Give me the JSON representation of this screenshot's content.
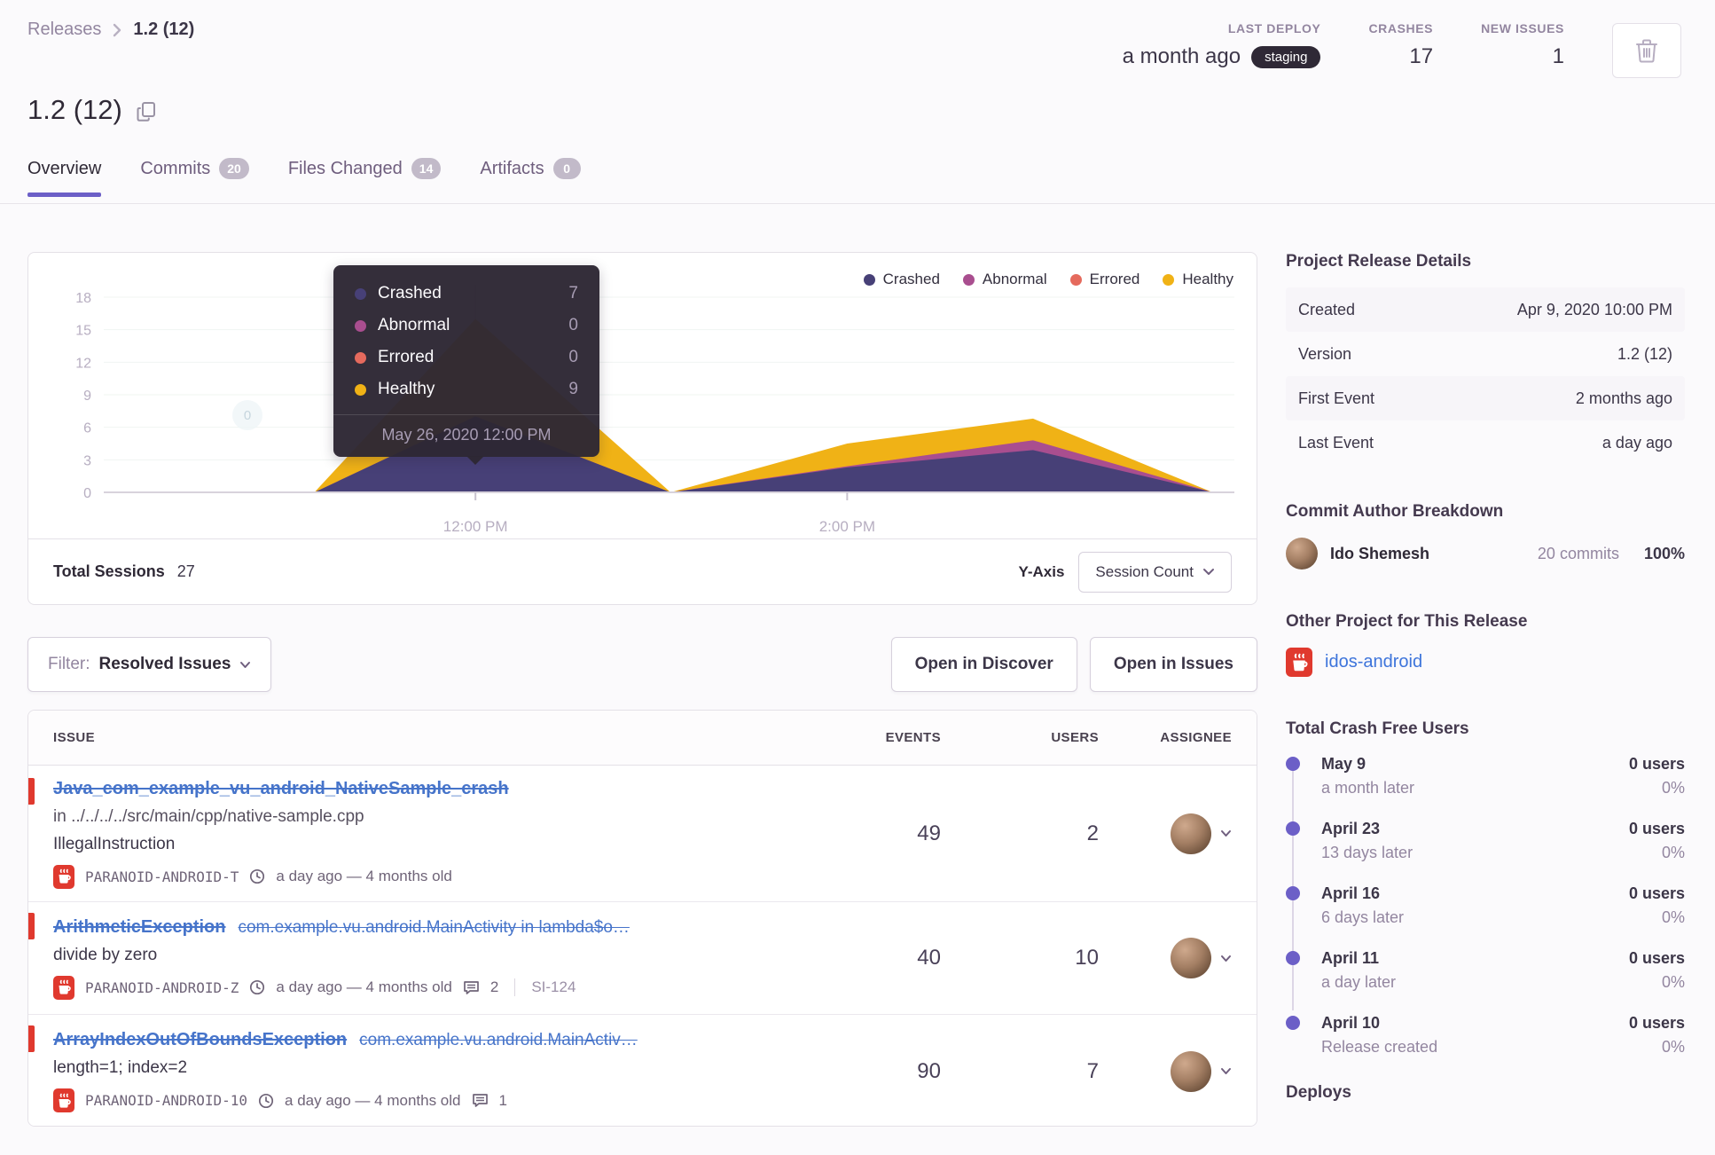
{
  "breadcrumb": {
    "parent": "Releases",
    "current": "1.2 (12)"
  },
  "header_stats": {
    "last_deploy_label": "LAST DEPLOY",
    "last_deploy_value": "a month ago",
    "last_deploy_env": "staging",
    "crashes_label": "CRASHES",
    "crashes_value": "17",
    "new_issues_label": "NEW ISSUES",
    "new_issues_value": "1"
  },
  "page_title": "1.2 (12)",
  "tabs": [
    {
      "label": "Overview"
    },
    {
      "label": "Commits",
      "badge": "20"
    },
    {
      "label": "Files Changed",
      "badge": "14"
    },
    {
      "label": "Artifacts",
      "badge": "0"
    }
  ],
  "chart_card": {
    "legend": [
      {
        "label": "Crashed"
      },
      {
        "label": "Abnormal"
      },
      {
        "label": "Errored"
      },
      {
        "label": "Healthy"
      }
    ],
    "tooltip": {
      "rows": [
        {
          "label": "Crashed",
          "value": "7"
        },
        {
          "label": "Abnormal",
          "value": "0"
        },
        {
          "label": "Errored",
          "value": "0"
        },
        {
          "label": "Healthy",
          "value": "9"
        }
      ],
      "footer": "May 26, 2020 12:00 PM"
    },
    "inline_zero_label": "0",
    "total_sessions_label": "Total Sessions",
    "total_sessions_value": "27",
    "y_axis_label": "Y-Axis",
    "y_axis_selected": "Session Count"
  },
  "chart_data": {
    "type": "area",
    "stacked": true,
    "title": "Release sessions over time",
    "ylim": [
      0,
      18
    ],
    "y_ticks": [
      0,
      3,
      6,
      9,
      12,
      15,
      18
    ],
    "x_range_minutes": [
      0,
      365
    ],
    "x_ticks": [
      {
        "label": "12:00 PM",
        "minutes": 120
      },
      {
        "label": "2:00 PM",
        "minutes": 240
      }
    ],
    "series": [
      {
        "name": "Crashed",
        "color": "#474077",
        "points": [
          [
            0,
            0
          ],
          [
            68,
            0
          ],
          [
            120,
            7
          ],
          [
            183,
            0
          ],
          [
            240,
            2.3
          ],
          [
            300,
            3.9
          ],
          [
            358,
            0
          ]
        ]
      },
      {
        "name": "Abnormal",
        "color": "#A94E8F",
        "points": [
          [
            0,
            0
          ],
          [
            68,
            0
          ],
          [
            120,
            0
          ],
          [
            183,
            0
          ],
          [
            240,
            0.1
          ],
          [
            300,
            0.9
          ],
          [
            358,
            0
          ]
        ]
      },
      {
        "name": "Errored",
        "color": "#E56A5D",
        "points": [
          [
            0,
            0
          ],
          [
            68,
            0
          ],
          [
            120,
            0
          ],
          [
            183,
            0
          ],
          [
            240,
            0
          ],
          [
            300,
            0
          ],
          [
            358,
            0
          ]
        ]
      },
      {
        "name": "Healthy",
        "color": "#F0B216",
        "points": [
          [
            0,
            0
          ],
          [
            68,
            0
          ],
          [
            120,
            9
          ],
          [
            183,
            0
          ],
          [
            240,
            2.1
          ],
          [
            300,
            2.0
          ],
          [
            358,
            0
          ]
        ]
      }
    ],
    "hover": {
      "x_minutes": 120,
      "x_label": "May 26, 2020 12:00 PM",
      "values": {
        "Crashed": 7,
        "Abnormal": 0,
        "Errored": 0,
        "Healthy": 9
      }
    },
    "total_sessions": 27,
    "y_axis_mode": "Session Count",
    "legend_position": "top-right",
    "grid": true
  },
  "filter_bar": {
    "filter_label": "Filter:",
    "filter_value": "Resolved Issues",
    "open_discover": "Open in Discover",
    "open_issues": "Open in Issues"
  },
  "issues_table": {
    "columns": {
      "issue": "ISSUE",
      "events": "EVENTS",
      "users": "USERS",
      "assignee": "ASSIGNEE"
    },
    "rows": [
      {
        "title": "Java_com_example_vu_android_NativeSample_crash",
        "culprit": "",
        "subtitle": "in ../../../../src/main/cpp/native-sample.cpp",
        "message": "IllegalInstruction",
        "project": "PARANOID-ANDROID-T",
        "age": "a day ago — 4 months old",
        "comments": "",
        "short_id": "",
        "events": "49",
        "users": "2"
      },
      {
        "title": "ArithmeticException",
        "culprit": "com.example.vu.android.MainActivity in lambda$o…",
        "subtitle": "",
        "message": "divide by zero",
        "project": "PARANOID-ANDROID-Z",
        "age": "a day ago — 4 months old",
        "comments": "2",
        "short_id": "SI-124",
        "events": "40",
        "users": "10"
      },
      {
        "title": "ArrayIndexOutOfBoundsException",
        "culprit": "com.example.vu.android.MainActiv…",
        "subtitle": "",
        "message": "length=1; index=2",
        "project": "PARANOID-ANDROID-10",
        "age": "a day ago — 4 months old",
        "comments": "1",
        "short_id": "",
        "events": "90",
        "users": "7"
      }
    ]
  },
  "sidebar": {
    "details": {
      "title": "Project Release Details",
      "rows": [
        {
          "label": "Created",
          "value": "Apr 9, 2020 10:00 PM"
        },
        {
          "label": "Version",
          "value": "1.2 (12)"
        },
        {
          "label": "First Event",
          "value": "2 months ago"
        },
        {
          "label": "Last Event",
          "value": "a day ago"
        }
      ]
    },
    "authors": {
      "title": "Commit Author Breakdown",
      "rows": [
        {
          "name": "Ido Shemesh",
          "commits": "20 commits",
          "percent": "100%"
        }
      ]
    },
    "other_project": {
      "title": "Other Project for This Release",
      "link": "idos-android"
    },
    "crash_free": {
      "title": "Total Crash Free Users",
      "items": [
        {
          "date": "May 9",
          "sub": "a month later",
          "users": "0 users",
          "pct": "0%"
        },
        {
          "date": "April 23",
          "sub": "13 days later",
          "users": "0 users",
          "pct": "0%"
        },
        {
          "date": "April 16",
          "sub": "6 days later",
          "users": "0 users",
          "pct": "0%"
        },
        {
          "date": "April 11",
          "sub": "a day later",
          "users": "0 users",
          "pct": "0%"
        },
        {
          "date": "April 10",
          "sub": "Release created",
          "users": "0 users",
          "pct": "0%"
        }
      ]
    },
    "deploys_title": "Deploys"
  },
  "colors": {
    "accent": "#6C5FC7",
    "link": "#4674CA",
    "danger": "#E0392E",
    "pill_dark": "#2F2936",
    "crashed": "#474077",
    "abnormal": "#A94E8F",
    "errored": "#E56A5D",
    "healthy": "#F0B216"
  }
}
